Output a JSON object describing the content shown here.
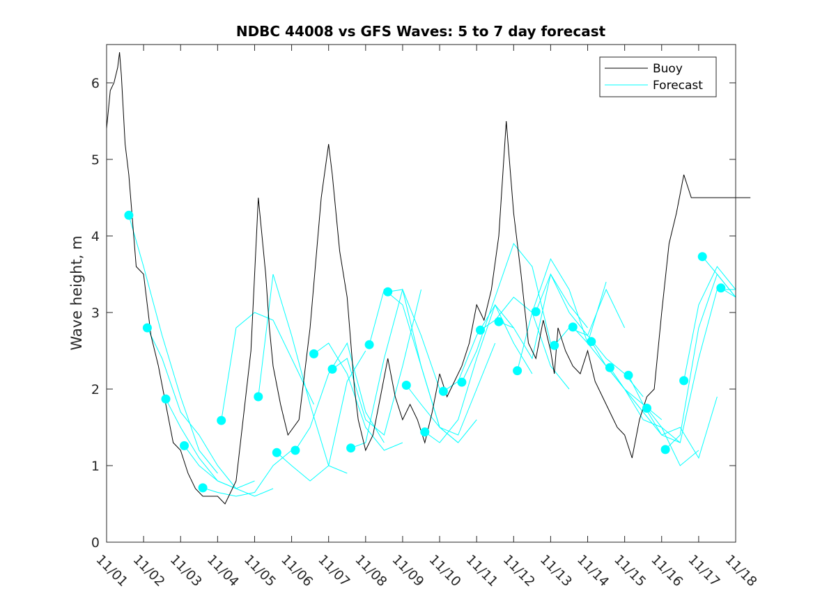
{
  "chart_data": {
    "type": "line",
    "title": "NDBC 44008 vs GFS Waves: 5 to 7 day forecast",
    "xlabel": "",
    "ylabel": "Wave height, m",
    "xlim": [
      0,
      17
    ],
    "ylim": [
      0,
      6.5
    ],
    "y_ticks": [
      0,
      1,
      2,
      3,
      4,
      5,
      6
    ],
    "x_tick_labels": [
      "11/01",
      "11/02",
      "11/03",
      "11/04",
      "11/05",
      "11/06",
      "11/07",
      "11/08",
      "11/09",
      "11/10",
      "11/11",
      "11/12",
      "11/13",
      "11/14",
      "11/15",
      "11/16",
      "11/17",
      "11/18"
    ],
    "legend": {
      "placement": "top-right",
      "entries": [
        "Buoy",
        "Forecast"
      ]
    },
    "colors": {
      "buoy": "#000000",
      "forecast": "#00ffff",
      "axes": "#262626"
    },
    "series": [
      {
        "name": "Buoy",
        "x": [
          0,
          0.1,
          0.2,
          0.3,
          0.35,
          0.4,
          0.5,
          0.6,
          0.8,
          1.0,
          1.2,
          1.4,
          1.6,
          1.8,
          2.0,
          2.2,
          2.4,
          2.6,
          2.8,
          3.0,
          3.2,
          3.5,
          3.9,
          4.0,
          4.1,
          4.2,
          4.3,
          4.4,
          4.5,
          4.7,
          4.9,
          5.2,
          5.5,
          5.8,
          6.0,
          6.1,
          6.3,
          6.5,
          6.6,
          6.7,
          6.8,
          6.9,
          7.0,
          7.2,
          7.4,
          7.6,
          7.8,
          8.0,
          8.2,
          8.4,
          8.6,
          8.8,
          9.0,
          9.2,
          9.4,
          9.6,
          9.8,
          10.0,
          10.2,
          10.4,
          10.6,
          10.8,
          11.0,
          11.2,
          11.4,
          11.6,
          11.8,
          12.0,
          12.1,
          12.2,
          12.4,
          12.6,
          12.8,
          13.0,
          13.2,
          13.4,
          13.6,
          13.8,
          14.0,
          14.2,
          14.4,
          14.6,
          14.8,
          15.0,
          15.2,
          15.4,
          15.6,
          15.8,
          16.0,
          16.2,
          16.4,
          16.6,
          16.8,
          17.0,
          17.2,
          17.4
        ],
        "values": [
          5.4,
          5.9,
          6.0,
          6.2,
          6.4,
          6.1,
          5.2,
          4.8,
          3.6,
          3.5,
          2.7,
          2.3,
          1.8,
          1.3,
          1.2,
          0.9,
          0.7,
          0.6,
          0.6,
          0.6,
          0.5,
          0.8,
          2.5,
          3.5,
          4.5,
          4.0,
          3.5,
          2.8,
          2.3,
          1.8,
          1.4,
          1.6,
          2.8,
          4.5,
          5.2,
          4.8,
          3.8,
          3.2,
          2.6,
          2.0,
          1.6,
          1.4,
          1.2,
          1.4,
          1.9,
          2.4,
          1.9,
          1.6,
          1.8,
          1.6,
          1.3,
          1.7,
          2.2,
          1.9,
          2.1,
          2.3,
          2.6,
          3.1,
          2.9,
          3.3,
          4.0,
          5.5,
          4.3,
          3.5,
          2.6,
          2.4,
          2.9,
          2.5,
          2.2,
          2.8,
          2.5,
          2.3,
          2.2,
          2.5,
          2.1,
          1.9,
          1.7,
          1.5,
          1.4,
          1.1,
          1.6,
          1.9,
          2.0,
          3.0,
          3.9,
          4.3,
          4.8,
          4.5,
          4.5,
          4.5,
          4.5,
          4.5,
          4.5,
          4.5,
          4.5,
          4.5
        ]
      },
      {
        "name": "Forecast",
        "runs": [
          {
            "x": [
              0.6,
              1.0,
              1.5,
              2.0,
              2.5,
              3.0
            ],
            "values": [
              4.27,
              3.6,
              2.7,
              1.9,
              1.2,
              0.9
            ]
          },
          {
            "x": [
              1.1,
              1.5,
              2.0,
              2.5,
              3.0,
              3.5
            ],
            "values": [
              2.8,
              2.4,
              1.7,
              1.4,
              1.0,
              0.7
            ]
          },
          {
            "x": [
              1.6,
              2.0,
              2.5,
              3.0,
              3.5,
              4.0
            ],
            "values": [
              1.87,
              1.5,
              1.1,
              0.8,
              0.7,
              0.8
            ]
          },
          {
            "x": [
              2.1,
              2.5,
              3.0,
              3.5,
              4.0,
              4.5
            ],
            "values": [
              1.26,
              1.0,
              0.8,
              0.7,
              0.6,
              0.7
            ]
          },
          {
            "x": [
              2.6,
              3.0,
              3.5,
              4.0,
              4.5,
              5.0
            ],
            "values": [
              0.71,
              0.65,
              0.6,
              0.65,
              1.0,
              1.2
            ]
          },
          {
            "x": [
              3.1,
              3.5,
              4.0,
              4.5,
              5.0,
              5.6
            ],
            "values": [
              1.59,
              2.8,
              3.0,
              2.9,
              2.4,
              1.8
            ]
          },
          {
            "x": [
              4.1,
              4.5,
              5.0,
              5.5,
              6.0,
              6.5
            ],
            "values": [
              1.9,
              3.5,
              2.7,
              1.8,
              1.0,
              0.9
            ]
          },
          {
            "x": [
              4.6,
              5.0,
              5.5,
              6.0,
              6.5,
              7.0
            ],
            "values": [
              1.17,
              1.0,
              0.8,
              1.0,
              2.1,
              2.5
            ]
          },
          {
            "x": [
              5.1,
              5.5,
              6.0,
              6.5,
              7.0,
              7.5
            ],
            "values": [
              1.2,
              1.5,
              2.2,
              2.6,
              1.7,
              1.3
            ]
          },
          {
            "x": [
              5.6,
              6.0,
              6.5,
              7.0,
              7.5,
              8.0
            ],
            "values": [
              2.46,
              2.6,
              2.2,
              1.5,
              1.2,
              1.3
            ]
          },
          {
            "x": [
              6.1,
              6.5,
              7.0,
              7.5,
              8.0,
              8.5
            ],
            "values": [
              2.26,
              2.4,
              1.6,
              1.4,
              2.3,
              3.3
            ]
          },
          {
            "x": [
              6.6,
              7.0,
              7.5,
              8.0,
              8.5,
              9.0
            ],
            "values": [
              1.23,
              1.3,
              2.4,
              3.3,
              2.7,
              2.0
            ]
          },
          {
            "x": [
              7.1,
              7.5,
              8.0,
              8.5,
              9.0,
              9.5
            ],
            "values": [
              2.58,
              3.3,
              3.1,
              2.3,
              1.5,
              1.3
            ]
          },
          {
            "x": [
              7.6,
              8.0,
              8.5,
              9.0,
              9.5,
              10.0
            ],
            "values": [
              3.27,
              3.3,
              2.3,
              1.5,
              1.3,
              1.6
            ]
          },
          {
            "x": [
              8.1,
              8.5,
              9.0,
              9.5,
              10.0,
              10.5
            ],
            "values": [
              2.05,
              1.8,
              1.5,
              1.4,
              2.0,
              2.6
            ]
          },
          {
            "x": [
              8.6,
              9.0,
              9.5,
              10.0,
              10.5,
              11.0
            ],
            "values": [
              1.44,
              1.3,
              1.6,
              2.4,
              3.1,
              2.8
            ]
          },
          {
            "x": [
              9.1,
              9.5,
              10.0,
              10.5,
              11.0,
              11.5
            ],
            "values": [
              1.97,
              2.1,
              2.7,
              3.1,
              2.6,
              2.2
            ]
          },
          {
            "x": [
              9.6,
              10.0,
              10.5,
              11.0,
              11.5,
              12.0
            ],
            "values": [
              2.09,
              2.5,
              3.2,
              3.9,
              3.6,
              2.6
            ]
          },
          {
            "x": [
              10.1,
              10.5,
              11.0,
              11.5,
              12.0,
              12.5
            ],
            "values": [
              2.77,
              2.9,
              3.2,
              3.0,
              2.3,
              2.0
            ]
          },
          {
            "x": [
              10.6,
              11.0,
              11.5,
              12.0,
              12.5,
              13.0
            ],
            "values": [
              2.88,
              2.8,
              2.4,
              3.5,
              3.1,
              2.8
            ]
          },
          {
            "x": [
              11.1,
              11.5,
              12.0,
              12.5,
              13.0,
              13.5
            ],
            "values": [
              2.24,
              3.0,
              3.7,
              3.3,
              2.6,
              3.4
            ]
          },
          {
            "x": [
              11.6,
              12.0,
              12.5,
              13.0,
              13.5,
              14.0
            ],
            "values": [
              3.01,
              3.5,
              3.0,
              2.7,
              3.3,
              2.8
            ]
          },
          {
            "x": [
              12.1,
              12.5,
              13.0,
              13.5,
              14.0,
              14.5
            ],
            "values": [
              2.57,
              2.8,
              2.7,
              2.4,
              2.2,
              1.9
            ]
          },
          {
            "x": [
              12.6,
              13.0,
              13.5,
              14.0,
              14.5,
              15.0
            ],
            "values": [
              2.81,
              2.6,
              2.3,
              2.0,
              1.8,
              1.6
            ]
          },
          {
            "x": [
              13.1,
              13.5,
              14.0,
              14.5,
              15.0,
              15.5
            ],
            "values": [
              2.62,
              2.3,
              2.0,
              1.7,
              1.4,
              1.3
            ]
          },
          {
            "x": [
              13.6,
              14.0,
              14.5,
              15.0,
              15.5,
              16.0
            ],
            "values": [
              2.28,
              2.0,
              1.6,
              1.5,
              1.0,
              1.2
            ]
          },
          {
            "x": [
              14.1,
              14.5,
              15.0,
              15.5,
              16.0,
              16.5
            ],
            "values": [
              2.18,
              1.8,
              1.4,
              1.5,
              1.1,
              1.9
            ]
          },
          {
            "x": [
              14.6,
              15.0,
              15.5,
              16.0,
              16.5,
              17.0
            ],
            "values": [
              1.75,
              1.5,
              1.3,
              2.4,
              3.3,
              3.3
            ]
          },
          {
            "x": [
              15.1,
              15.5,
              16.0,
              16.5,
              17.0
            ],
            "values": [
              1.21,
              1.4,
              2.8,
              3.5,
              3.2
            ]
          },
          {
            "x": [
              15.6,
              16.0,
              16.5,
              17.0
            ],
            "values": [
              2.11,
              3.1,
              3.6,
              3.3
            ]
          },
          {
            "x": [
              16.1,
              16.5,
              17.0
            ],
            "values": [
              3.73,
              3.5,
              3.2
            ]
          },
          {
            "x": [
              16.6,
              17.0
            ],
            "values": [
              3.32,
              3.2
            ]
          }
        ],
        "markers": {
          "x": [
            0.6,
            1.1,
            1.6,
            2.1,
            2.6,
            3.1,
            4.1,
            4.6,
            5.1,
            5.6,
            6.1,
            6.6,
            7.1,
            7.6,
            8.1,
            8.6,
            9.1,
            9.6,
            10.1,
            10.6,
            11.1,
            11.6,
            12.1,
            12.6,
            13.1,
            13.6,
            14.1,
            14.6,
            15.1,
            15.6,
            16.1,
            16.6
          ],
          "values": [
            4.27,
            2.8,
            1.87,
            1.26,
            0.71,
            1.59,
            1.9,
            1.17,
            1.2,
            2.46,
            2.26,
            1.23,
            2.58,
            3.27,
            2.05,
            1.44,
            1.97,
            2.09,
            2.77,
            2.88,
            2.24,
            3.01,
            2.57,
            2.81,
            2.62,
            2.28,
            2.18,
            1.75,
            1.21,
            2.11,
            3.73,
            3.32
          ]
        }
      }
    ]
  }
}
